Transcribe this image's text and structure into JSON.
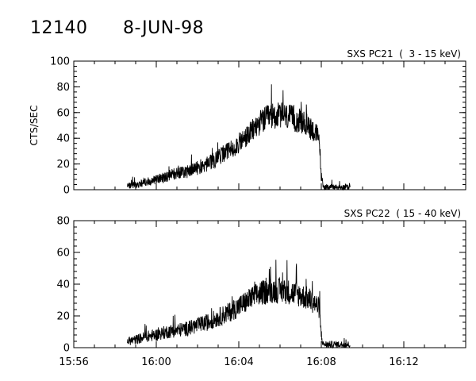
{
  "header": {
    "id": "12140",
    "date": "8-JUN-98"
  },
  "colors": {
    "background": "#ffffff",
    "ink": "#000000"
  },
  "chart_data": [
    {
      "type": "line",
      "title": "SXS PC21  (  3 - 15 keV)",
      "ylabel": "CTS/SEC",
      "xlabel": "",
      "x_unit": "UT time (minutes after 15:56)",
      "xlim": [
        0,
        19
      ],
      "ylim": [
        0,
        100
      ],
      "yticks": [
        0,
        20,
        40,
        60,
        80,
        100
      ],
      "xticks": [
        0,
        4,
        8,
        12,
        16
      ],
      "xtick_labels": [],
      "grid": false,
      "series": [
        {
          "x": [
            2.6,
            3.0,
            3.5,
            4.0,
            4.5,
            5.0,
            5.5,
            6.0,
            6.5,
            7.0,
            7.5,
            8.0,
            8.5,
            9.0,
            9.5,
            10.0,
            10.5,
            11.0,
            11.5,
            11.9,
            12.0,
            12.1,
            12.5,
            13.0,
            13.4
          ],
          "values": [
            3,
            4,
            6,
            8,
            10,
            13,
            14,
            17,
            20,
            25,
            30,
            36,
            43,
            52,
            57,
            58,
            56,
            53,
            48,
            40,
            10,
            2,
            2,
            2,
            2
          ]
        }
      ]
    },
    {
      "type": "line",
      "title": "SXS PC22  ( 15 - 40 keV)",
      "ylabel": "",
      "xlabel": "",
      "x_unit": "UT time (minutes after 15:56)",
      "xlim": [
        0,
        19
      ],
      "ylim": [
        0,
        80
      ],
      "yticks": [
        0,
        20,
        40,
        60,
        80
      ],
      "xticks": [
        0,
        4,
        8,
        12,
        16
      ],
      "xtick_labels": [
        "15:56",
        "16:00",
        "16:04",
        "16:08",
        "16:12"
      ],
      "grid": false,
      "series": [
        {
          "x": [
            2.6,
            3.0,
            3.5,
            4.0,
            4.5,
            5.0,
            5.5,
            6.0,
            6.5,
            7.0,
            7.5,
            8.0,
            8.5,
            9.0,
            9.5,
            10.0,
            10.5,
            11.0,
            11.5,
            11.9,
            12.0,
            12.1,
            12.5,
            13.0,
            13.4
          ],
          "values": [
            4,
            5,
            7,
            8,
            10,
            11,
            12,
            14,
            16,
            19,
            22,
            26,
            30,
            34,
            36,
            36,
            35,
            33,
            30,
            25,
            8,
            2,
            2,
            2,
            2
          ]
        }
      ]
    }
  ]
}
